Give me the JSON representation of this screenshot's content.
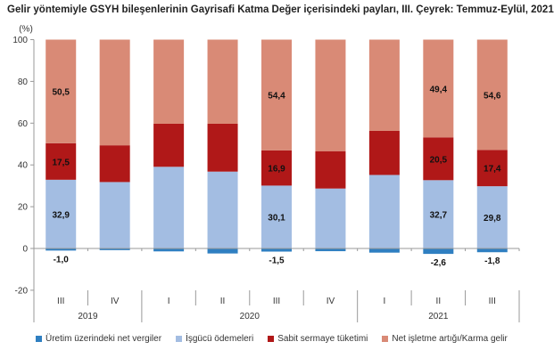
{
  "chart_data": {
    "type": "bar",
    "stacked": true,
    "title": "Gelir yöntemiyle GSYH bileşenlerinin Gayrisafi Katma Değer içerisindeki payları, III. Çeyrek: Temmuz-Eylül, 2021",
    "ylabel": "(%)",
    "ylim": [
      -20,
      100
    ],
    "yticks": [
      -20,
      0,
      20,
      40,
      60,
      80,
      100
    ],
    "categories": [
      "III",
      "IV",
      "I",
      "II",
      "III",
      "IV",
      "I",
      "II",
      "III"
    ],
    "years": [
      {
        "label": "2019",
        "span": 2
      },
      {
        "label": "2020",
        "span": 4
      },
      {
        "label": "2021",
        "span": 3
      }
    ],
    "legend_position": "bottom",
    "grid": false,
    "series": [
      {
        "name": "Üretim üzerindeki net vergiler",
        "color": "#2f7fc1",
        "values": [
          -1.0,
          -0.8,
          -1.4,
          -2.4,
          -1.5,
          -1.3,
          -2.0,
          -2.6,
          -1.8
        ],
        "labels": [
          "-1,0",
          "",
          "",
          "",
          "-1,5",
          "",
          "",
          "-2,6",
          "-1,8"
        ]
      },
      {
        "name": "İşgücü ödemeleri",
        "color": "#a3bde2",
        "values": [
          32.9,
          31.8,
          39.1,
          36.8,
          30.1,
          28.7,
          35.2,
          32.7,
          29.8
        ],
        "labels": [
          "32,9",
          "",
          "",
          "",
          "30,1",
          "",
          "",
          "32,7",
          "29,8"
        ]
      },
      {
        "name": "Sabit sermaye tüketimi",
        "color": "#b01818",
        "values": [
          17.5,
          17.6,
          20.6,
          22.9,
          16.9,
          17.9,
          21.1,
          20.5,
          17.4
        ],
        "labels": [
          "17,5",
          "",
          "",
          "",
          "16,9",
          "",
          "",
          "20,5",
          "17,4"
        ]
      },
      {
        "name": "Net işletme artığı/Karma gelir",
        "color": "#d98a76",
        "values": [
          50.5,
          51.4,
          41.7,
          42.7,
          54.4,
          54.7,
          45.7,
          49.4,
          54.6
        ],
        "labels": [
          "50,5",
          "",
          "",
          "",
          "54,4",
          "",
          "",
          "49,4",
          "54,6"
        ]
      }
    ]
  }
}
